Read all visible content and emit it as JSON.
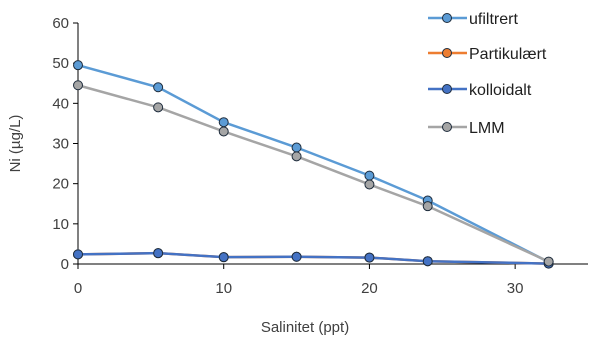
{
  "chart_data": {
    "type": "line",
    "xlabel": "Salinitet (ppt)",
    "ylabel": "Ni (µg/L)",
    "xlim": [
      0,
      35
    ],
    "ylim": [
      0,
      60
    ],
    "xticks": [
      0,
      10,
      20,
      30
    ],
    "yticks": [
      0,
      10,
      20,
      30,
      40,
      50,
      60
    ],
    "grid": false,
    "legend_position": "top-right",
    "series": [
      {
        "name": "ufiltrert",
        "color": "#5b9bd5",
        "marker_fill": "#5b9bd5",
        "x": [
          0,
          5.5,
          10,
          15,
          20,
          24,
          32.3
        ],
        "y": [
          49.5,
          44.0,
          35.3,
          29.0,
          22.0,
          15.8,
          0.5
        ]
      },
      {
        "name": "Partikulært",
        "color": "#ed7d31",
        "marker_fill": "#ed7d31",
        "x": [
          0,
          5.5,
          10,
          15,
          20,
          24,
          32.3
        ],
        "y": [
          2.4,
          2.7,
          1.7,
          1.8,
          1.6,
          0.7,
          0.1
        ]
      },
      {
        "name": "kolloidalt",
        "color": "#4472c4",
        "marker_fill": "#4472c4",
        "x": [
          0,
          5.5,
          10,
          15,
          20,
          24,
          32.3
        ],
        "y": [
          2.4,
          2.7,
          1.7,
          1.8,
          1.6,
          0.7,
          0.1
        ]
      },
      {
        "name": "LMM",
        "color": "#a5a5a5",
        "marker_fill": "#a5a5a5",
        "x": [
          0,
          5.5,
          10,
          15,
          20,
          24,
          32.3
        ],
        "y": [
          44.5,
          39.0,
          33.0,
          26.8,
          19.8,
          14.4,
          0.6
        ]
      }
    ]
  }
}
